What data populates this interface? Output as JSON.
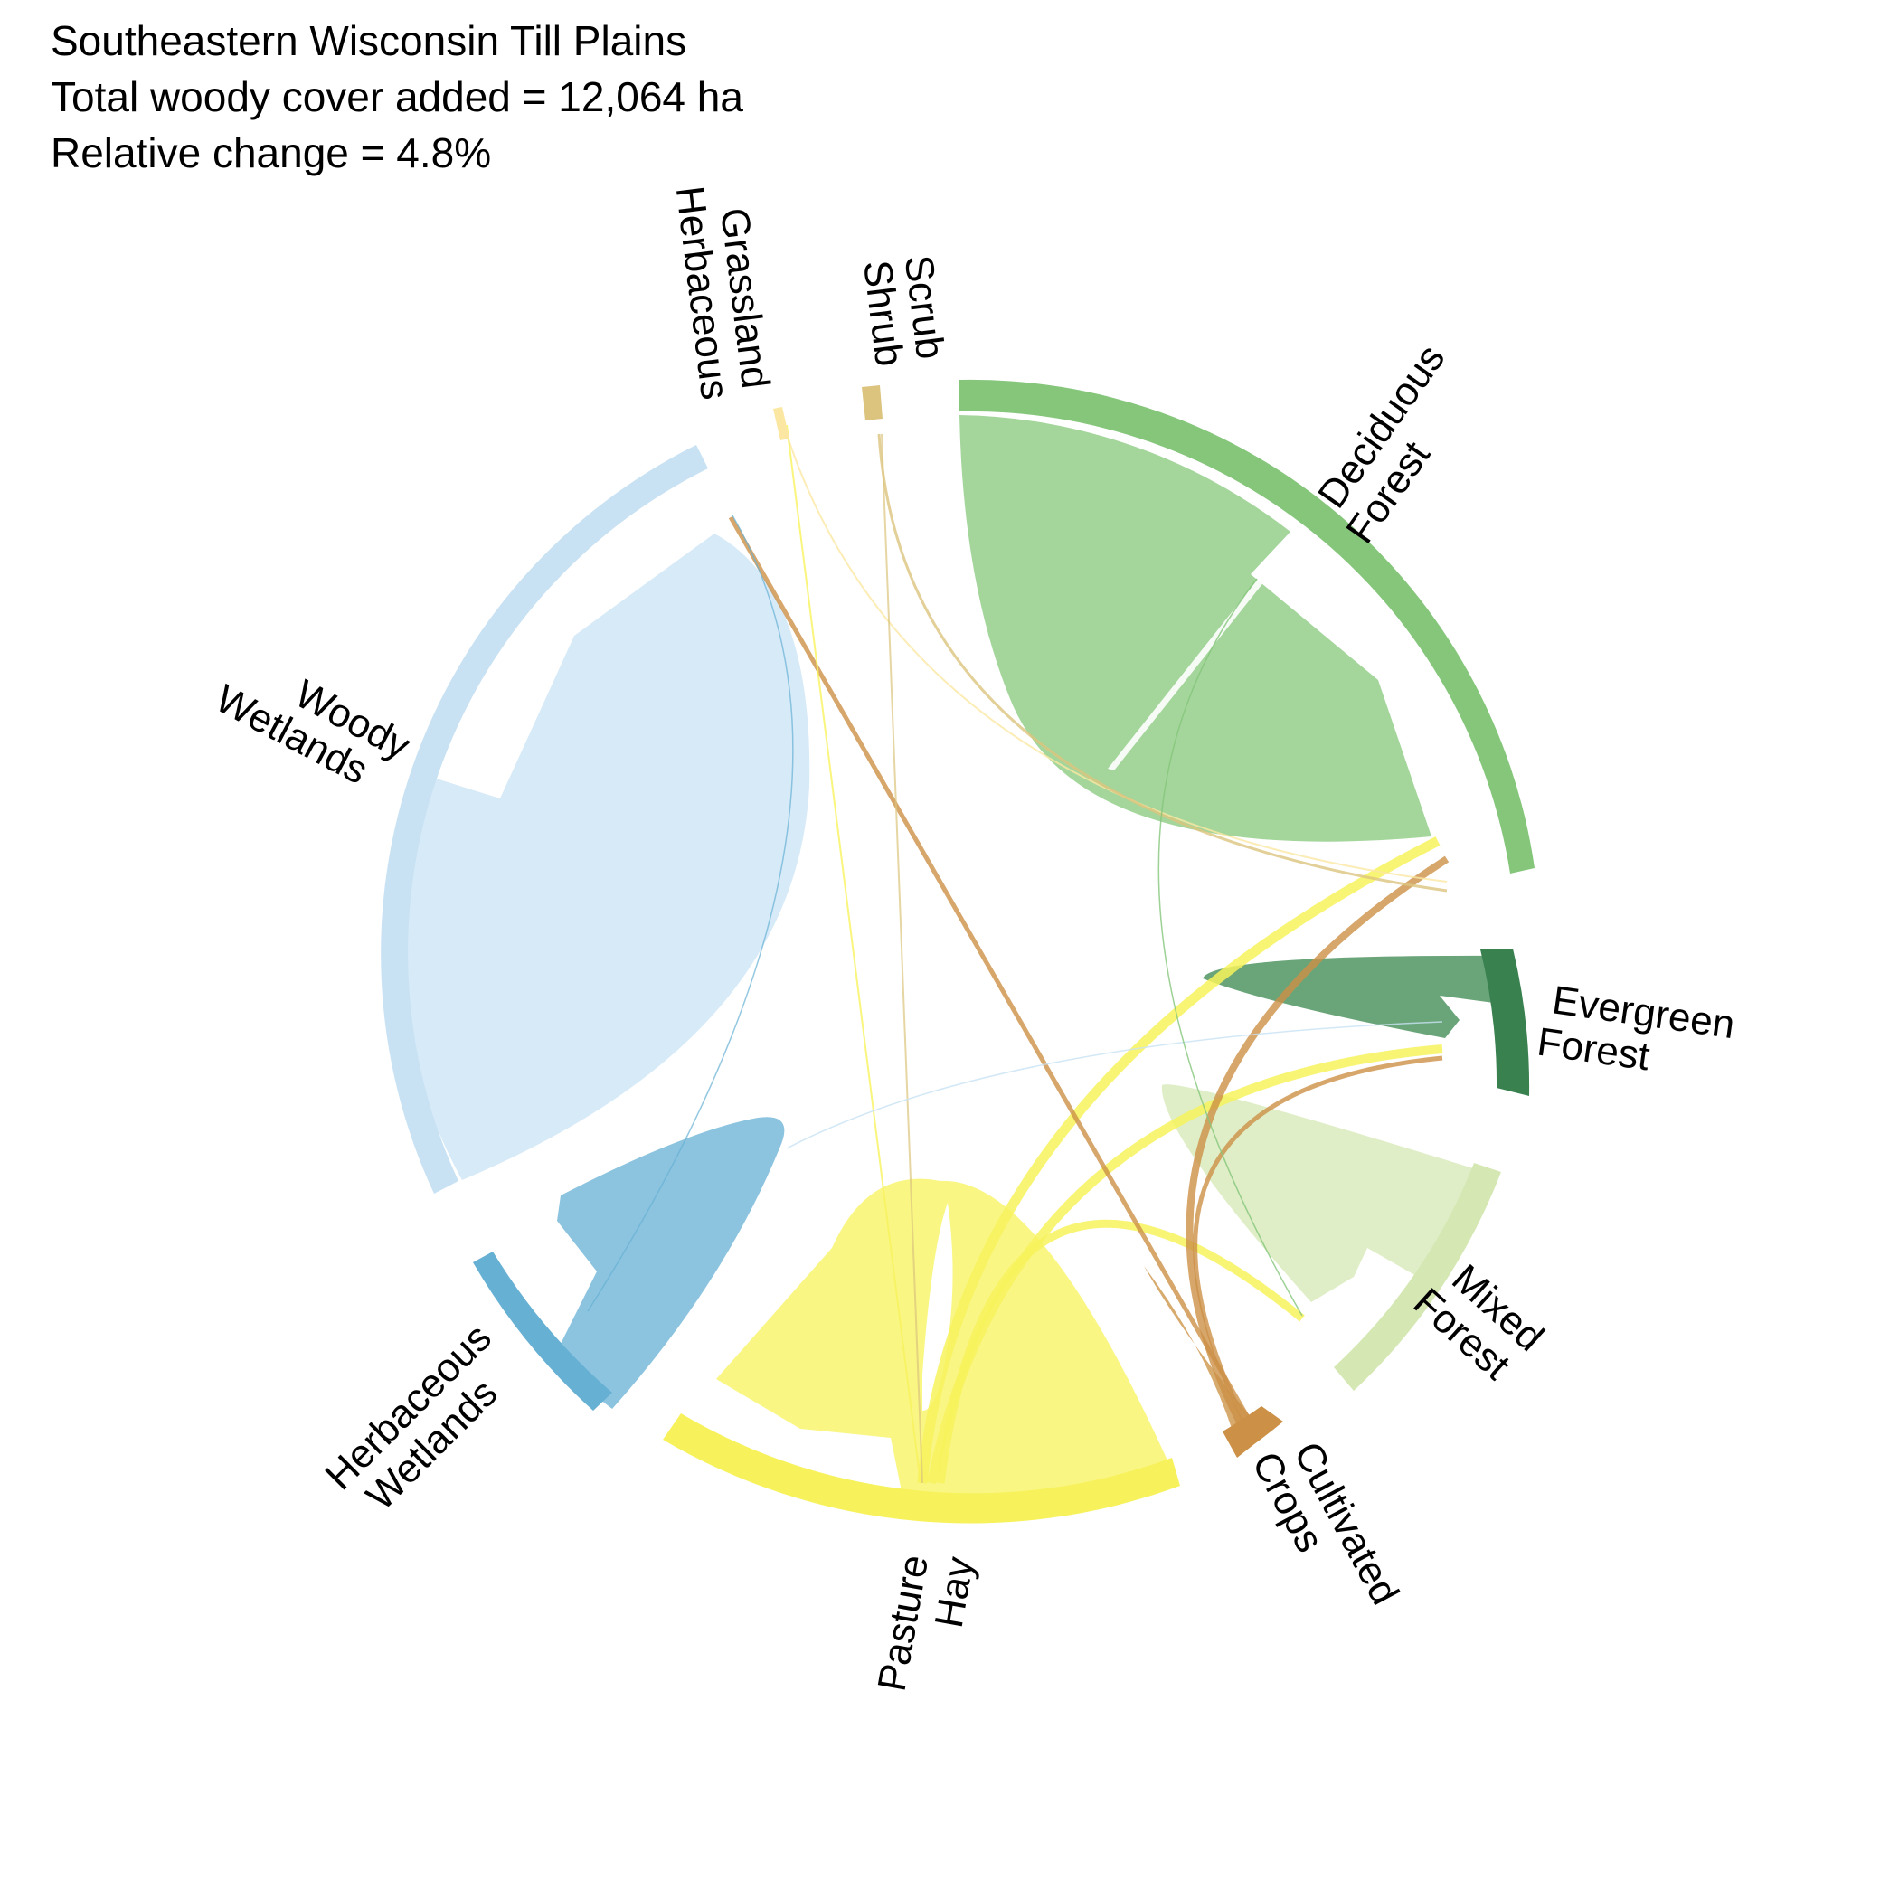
{
  "header": {
    "line1": "Southeastern Wisconsin Till Plains",
    "line2": "Total woody cover added = 12,064 ha",
    "line3": "Relative change = 4.8%"
  },
  "sectors": [
    {
      "id": "deciduous",
      "line1": "Deciduous",
      "line2": "Forest",
      "color": "#85c67b",
      "chord": "#a4d69c"
    },
    {
      "id": "evergreen",
      "line1": "Evergreen",
      "line2": "Forest",
      "color": "#3a8150",
      "chord": "#6aa57a"
    },
    {
      "id": "mixed",
      "line1": "Mixed",
      "line2": "Forest",
      "color": "#d5e8b4",
      "chord": "#dfeec6"
    },
    {
      "id": "cultivated",
      "line1": "Cultivated",
      "line2": "Crops",
      "color": "#cc9046",
      "chord": "#d7aa6d"
    },
    {
      "id": "pasture",
      "line1": "Pasture",
      "line2": "Hay",
      "color": "#f7f25c",
      "chord": "#f9f684"
    },
    {
      "id": "herbwet",
      "line1": "Herbaceous",
      "line2": "Wetlands",
      "color": "#66b0d4",
      "chord": "#8cc4df"
    },
    {
      "id": "woodywet",
      "line1": "Woody",
      "line2": "Wetlands",
      "color": "#c8e2f4",
      "chord": "#d7eaf8"
    },
    {
      "id": "grassland",
      "line1": "Grassland",
      "line2": "Herbaceous",
      "color": "#fbe7a2",
      "chord": "#fbecb8"
    },
    {
      "id": "shrub",
      "line1": "Shrub",
      "line2": "Scrub",
      "color": "#dcc47e",
      "chord": "#e4d29a"
    }
  ]
}
